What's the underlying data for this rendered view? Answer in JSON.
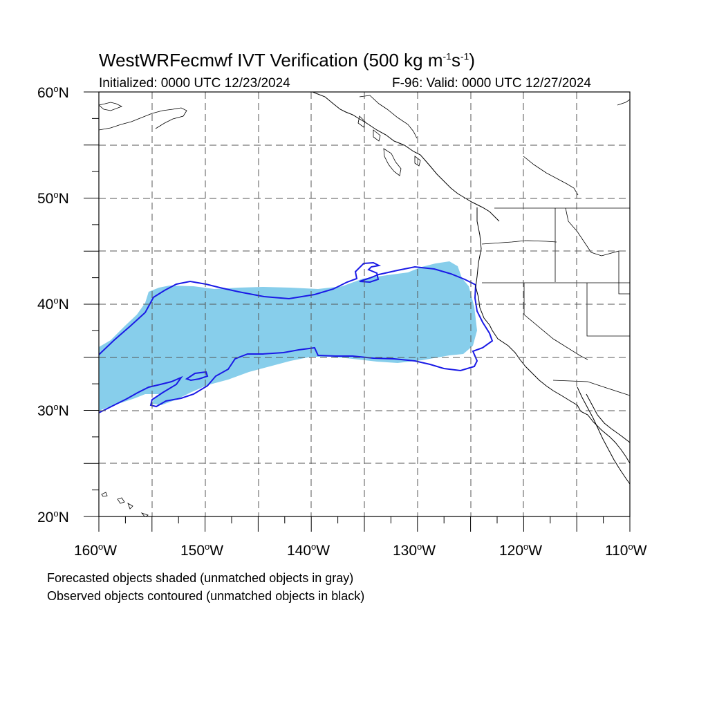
{
  "header": {
    "title": "WestWRFecmwf IVT Verification (500 kg m",
    "title_sup1": "-1",
    "title_mid": "s",
    "title_sup2": "-1",
    "title_end": ")",
    "initialized": "Initialized: 0000 UTC 12/23/2024",
    "valid": "F-96: Valid: 0000 UTC 12/27/2024"
  },
  "axes": {
    "lat_ticks": [
      "60",
      "50",
      "40",
      "30",
      "20"
    ],
    "lat_suffix": "N",
    "lon_ticks": [
      "160",
      "150",
      "140",
      "130",
      "120",
      "110"
    ],
    "lon_suffix": "W",
    "degree_symbol": "o"
  },
  "map": {
    "lon_range": [
      -160,
      -110
    ],
    "lat_range": [
      20,
      60
    ],
    "gridline_interval_deg": 5,
    "gridline_style": "dashed"
  },
  "legend_notes": {
    "forecast_note": "Forecasted objects shaded (unmatched objects in gray)",
    "observed_note": "Observed objects contoured (unmatched objects in black)"
  },
  "colors": {
    "forecast_fill": "#87ceeb",
    "observed_contour": "#1a1ae6",
    "coastline": "#000000",
    "gridline": "#555555",
    "background": "#ffffff"
  }
}
